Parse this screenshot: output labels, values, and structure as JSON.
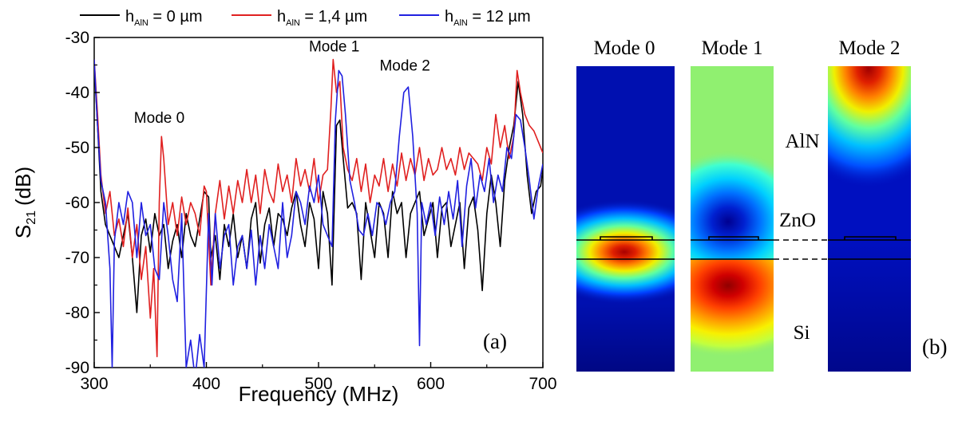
{
  "chart_data": [
    {
      "type": "line",
      "panel_label": "(a)",
      "xlabel": "Frequency (MHz)",
      "ylabel_main": "S",
      "ylabel_sub": "21",
      "ylabel_unit": "(dB)",
      "xlim": [
        300,
        700
      ],
      "ylim": [
        -90,
        -30
      ],
      "xticks": [
        300,
        400,
        500,
        600,
        700
      ],
      "yticks": [
        -90,
        -80,
        -70,
        -60,
        -50,
        -40,
        -30
      ],
      "legend_position": "top",
      "legend": [
        {
          "prefix": "h",
          "sub": "AlN",
          "suffix": " = 0 µm"
        },
        {
          "prefix": "h",
          "sub": "AlN",
          "suffix": " = 1,4 µm"
        },
        {
          "prefix": "h",
          "sub": "AlN",
          "suffix": " = 12 µm"
        }
      ],
      "annotations": [
        {
          "text": "Mode 0",
          "x": 358,
          "y": -45.5
        },
        {
          "text": "Mode 1",
          "x": 514,
          "y": -32.5
        },
        {
          "text": "Mode 2",
          "x": 577,
          "y": -36
        }
      ],
      "series": [
        {
          "color": "#000000",
          "x": [
            300,
            303,
            306,
            310,
            314,
            318,
            322,
            326,
            330,
            334,
            338,
            342,
            346,
            350,
            354,
            358,
            362,
            366,
            370,
            374,
            378,
            382,
            386,
            390,
            394,
            398,
            402,
            404,
            408,
            412,
            416,
            420,
            424,
            428,
            432,
            436,
            440,
            444,
            448,
            452,
            456,
            460,
            464,
            468,
            472,
            476,
            480,
            484,
            488,
            492,
            496,
            500,
            504,
            508,
            512,
            516,
            519,
            522,
            526,
            530,
            534,
            538,
            542,
            546,
            550,
            554,
            558,
            562,
            566,
            570,
            574,
            578,
            582,
            586,
            590,
            594,
            598,
            602,
            606,
            610,
            614,
            618,
            622,
            626,
            630,
            634,
            638,
            642,
            646,
            650,
            654,
            658,
            662,
            666,
            670,
            674,
            678,
            682,
            686,
            690,
            694,
            698,
            700
          ],
          "y": [
            -35,
            -46,
            -58,
            -64,
            -66,
            -68,
            -70,
            -66,
            -62,
            -70,
            -80,
            -66,
            -63,
            -69,
            -62,
            -66,
            -64,
            -72,
            -67,
            -64,
            -70,
            -62,
            -66,
            -68,
            -63,
            -58,
            -59,
            -70,
            -66,
            -74,
            -64,
            -68,
            -62,
            -70,
            -66,
            -72,
            -63,
            -60,
            -71,
            -64,
            -61,
            -68,
            -62,
            -63,
            -66,
            -61,
            -58,
            -64,
            -68,
            -60,
            -63,
            -72,
            -58,
            -62,
            -75,
            -46,
            -45,
            -52,
            -61,
            -60,
            -62,
            -74,
            -60,
            -65,
            -70,
            -60,
            -62,
            -70,
            -58,
            -62,
            -60,
            -70,
            -62,
            -60,
            -58,
            -66,
            -63,
            -60,
            -70,
            -61,
            -60,
            -68,
            -64,
            -60,
            -72,
            -61,
            -59,
            -65,
            -76,
            -62,
            -55,
            -60,
            -68,
            -56,
            -50,
            -46,
            -38,
            -44,
            -55,
            -62,
            -58,
            -57,
            -54
          ]
        },
        {
          "color": "#e02020",
          "x": [
            300,
            303,
            306,
            310,
            314,
            318,
            322,
            326,
            330,
            334,
            338,
            342,
            346,
            350,
            353,
            356,
            358,
            360,
            362,
            366,
            370,
            374,
            378,
            382,
            386,
            390,
            394,
            398,
            400,
            404,
            408,
            412,
            416,
            420,
            424,
            428,
            432,
            436,
            440,
            444,
            448,
            452,
            456,
            460,
            464,
            468,
            472,
            476,
            480,
            484,
            488,
            492,
            496,
            500,
            504,
            508,
            511,
            513,
            516,
            519,
            522,
            526,
            530,
            534,
            538,
            542,
            546,
            550,
            554,
            558,
            562,
            566,
            570,
            574,
            578,
            582,
            586,
            590,
            594,
            598,
            602,
            606,
            610,
            614,
            618,
            622,
            626,
            630,
            634,
            638,
            642,
            646,
            650,
            654,
            658,
            662,
            666,
            670,
            674,
            677,
            680,
            684,
            688,
            692,
            696,
            700
          ],
          "y": [
            -34,
            -44,
            -55,
            -62,
            -58,
            -66,
            -63,
            -68,
            -61,
            -70,
            -64,
            -74,
            -68,
            -81,
            -72,
            -88,
            -60,
            -48,
            -52,
            -64,
            -60,
            -66,
            -59,
            -64,
            -60,
            -62,
            -66,
            -57,
            -58,
            -75,
            -62,
            -56,
            -63,
            -57,
            -62,
            -56,
            -60,
            -54,
            -60,
            -55,
            -62,
            -54,
            -58,
            -60,
            -53,
            -58,
            -55,
            -60,
            -52,
            -57,
            -54,
            -58,
            -52,
            -60,
            -55,
            -54,
            -43,
            -34,
            -40,
            -38,
            -50,
            -54,
            -56,
            -52,
            -58,
            -53,
            -60,
            -55,
            -57,
            -52,
            -58,
            -53,
            -57,
            -51,
            -56,
            -52,
            -55,
            -50,
            -56,
            -52,
            -55,
            -54,
            -50,
            -54,
            -52,
            -55,
            -50,
            -54,
            -51,
            -52,
            -53,
            -56,
            -50,
            -53,
            -44,
            -50,
            -46,
            -52,
            -48,
            -36,
            -40,
            -44,
            -46,
            -47,
            -49,
            -51
          ]
        },
        {
          "color": "#2020e0",
          "x": [
            300,
            303,
            306,
            310,
            314,
            316,
            318,
            322,
            326,
            330,
            334,
            338,
            342,
            346,
            350,
            354,
            358,
            362,
            366,
            370,
            374,
            378,
            382,
            386,
            390,
            394,
            398,
            402,
            405,
            408,
            412,
            416,
            420,
            424,
            428,
            432,
            436,
            440,
            444,
            448,
            452,
            456,
            460,
            464,
            468,
            472,
            476,
            480,
            484,
            488,
            492,
            496,
            500,
            504,
            508,
            512,
            515,
            518,
            521,
            524,
            528,
            532,
            536,
            540,
            544,
            548,
            552,
            556,
            560,
            564,
            568,
            572,
            576,
            580,
            584,
            588,
            590,
            592,
            596,
            600,
            604,
            608,
            612,
            616,
            620,
            624,
            628,
            632,
            636,
            640,
            644,
            648,
            652,
            656,
            660,
            664,
            668,
            672,
            676,
            680,
            684,
            688,
            692,
            696,
            700
          ],
          "y": [
            -34,
            -46,
            -56,
            -60,
            -72,
            -90,
            -67,
            -60,
            -64,
            -58,
            -60,
            -70,
            -60,
            -66,
            -64,
            -72,
            -74,
            -60,
            -66,
            -74,
            -78,
            -62,
            -90,
            -85,
            -92,
            -84,
            -90,
            -62,
            -75,
            -62,
            -72,
            -66,
            -64,
            -75,
            -68,
            -66,
            -72,
            -65,
            -75,
            -66,
            -72,
            -64,
            -68,
            -72,
            -60,
            -70,
            -66,
            -58,
            -60,
            -64,
            -57,
            -60,
            -55,
            -64,
            -66,
            -68,
            -45,
            -36,
            -37,
            -44,
            -56,
            -60,
            -65,
            -66,
            -62,
            -66,
            -60,
            -61,
            -64,
            -60,
            -58,
            -48,
            -40,
            -39,
            -48,
            -62,
            -86,
            -60,
            -64,
            -60,
            -66,
            -59,
            -64,
            -58,
            -63,
            -56,
            -68,
            -57,
            -52,
            -61,
            -55,
            -58,
            -52,
            -60,
            -55,
            -58,
            -50,
            -52,
            -44,
            -45,
            -50,
            -56,
            -63,
            -57,
            -53
          ]
        }
      ]
    },
    {
      "type": "heatmap",
      "panel_label": "(b)",
      "titles": [
        "Mode 0",
        "Mode 1",
        "Mode 2"
      ],
      "layer_labels": [
        "AlN",
        "ZnO",
        "Si"
      ],
      "colormap": "jet"
    }
  ]
}
